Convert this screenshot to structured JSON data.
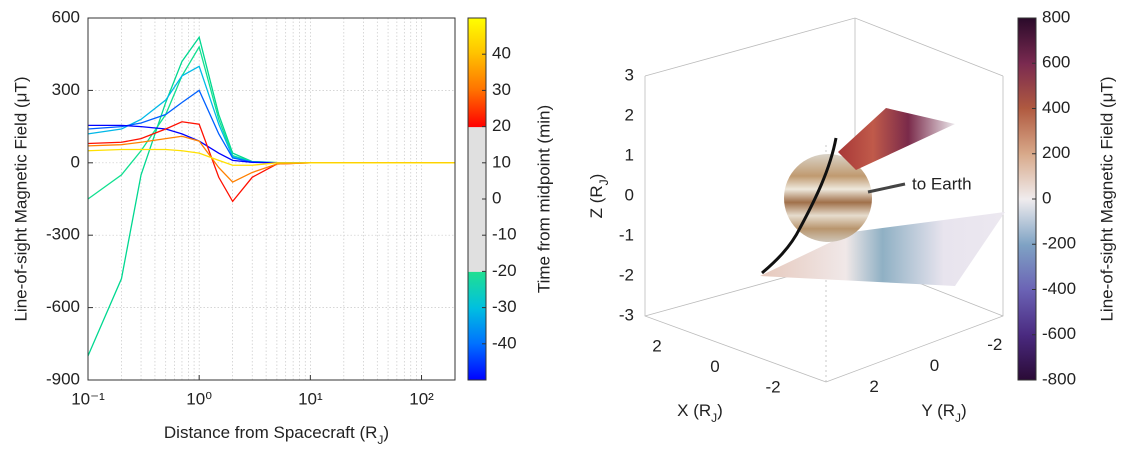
{
  "chart_data": [
    {
      "type": "line",
      "ylabel": "Line-of-sight  Magnetic  Field  (μT)",
      "xlabel": [
        "Distance  from  Spacecraft  (R",
        "J",
        ")"
      ],
      "xscale": "log",
      "x": [
        0.1,
        0.2,
        0.3,
        0.5,
        0.7,
        1,
        1.5,
        2,
        3,
        5,
        10,
        20,
        50,
        100,
        200
      ],
      "xlim": [
        0.1,
        200
      ],
      "xticks": [
        {
          "value": 0.1,
          "label": "10⁻¹"
        },
        {
          "value": 1,
          "label": "10⁰"
        },
        {
          "value": 10,
          "label": "10¹"
        },
        {
          "value": 100,
          "label": "10²"
        }
      ],
      "xminorticks": [
        0.2,
        0.3,
        0.4,
        0.5,
        0.6,
        0.7,
        0.8,
        0.9,
        2,
        3,
        4,
        5,
        6,
        7,
        8,
        9,
        20,
        30,
        40,
        50,
        60,
        70,
        80,
        90
      ],
      "ylim": [
        -900,
        600
      ],
      "yticks": [
        -900,
        -600,
        -300,
        0,
        300,
        600
      ],
      "grid": true,
      "series": [
        {
          "color": "#00d890",
          "values": [
            -800,
            -480,
            -50,
            250,
            420,
            520,
            200,
            40,
            5,
            1,
            0,
            0,
            0,
            0,
            0
          ]
        },
        {
          "color": "#10e090",
          "values": [
            -150,
            -50,
            50,
            200,
            360,
            480,
            180,
            30,
            5,
            0,
            0,
            0,
            0,
            0,
            0
          ]
        },
        {
          "color": "#00b8e8",
          "values": [
            120,
            140,
            180,
            260,
            360,
            400,
            160,
            25,
            4,
            0,
            0,
            0,
            0,
            0,
            0
          ]
        },
        {
          "color": "#0060ff",
          "values": [
            140,
            150,
            165,
            200,
            250,
            300,
            120,
            20,
            3,
            0,
            0,
            0,
            0,
            0,
            0
          ]
        },
        {
          "color": "#0000ff",
          "values": [
            155,
            155,
            150,
            140,
            120,
            90,
            40,
            10,
            2,
            0,
            0,
            0,
            0,
            0,
            0
          ]
        },
        {
          "color": "#ff1000",
          "values": [
            80,
            85,
            100,
            140,
            170,
            160,
            -60,
            -160,
            -60,
            -5,
            0,
            0,
            0,
            0,
            0
          ]
        },
        {
          "color": "#ff8000",
          "values": [
            70,
            75,
            85,
            100,
            110,
            90,
            -20,
            -80,
            -40,
            -5,
            0,
            0,
            0,
            0,
            0
          ]
        },
        {
          "color": "#ffe000",
          "values": [
            50,
            55,
            55,
            55,
            50,
            40,
            10,
            -10,
            -10,
            0,
            0,
            0,
            0,
            0,
            0
          ]
        }
      ],
      "colorbar": {
        "label": "Time  from  midpoint  (min)",
        "lim": [
          -50,
          50
        ],
        "ticks": [
          -40,
          -30,
          -20,
          -10,
          0,
          10,
          20,
          30,
          40
        ],
        "segments": [
          {
            "from": -50,
            "to": -40,
            "colors": [
              "#0000ff",
              "#0070ff"
            ]
          },
          {
            "from": -40,
            "to": -30,
            "colors": [
              "#0070ff",
              "#00c0e0"
            ]
          },
          {
            "from": -30,
            "to": -20,
            "colors": [
              "#00c0e0",
              "#20e090"
            ]
          },
          {
            "from": -20,
            "to": 20,
            "colors": [
              "#e0e0e0",
              "#e0e0e0"
            ]
          },
          {
            "from": 20,
            "to": 30,
            "colors": [
              "#ff0000",
              "#ff7000"
            ]
          },
          {
            "from": 30,
            "to": 40,
            "colors": [
              "#ff7000",
              "#ffc000"
            ]
          },
          {
            "from": 40,
            "to": 50,
            "colors": [
              "#ffc000",
              "#ffff00"
            ]
          }
        ]
      }
    },
    {
      "type": "surface3d",
      "annotation": "to Earth",
      "xlabel": [
        "X  (R",
        "J",
        ")"
      ],
      "ylabel": [
        "Y  (R",
        "J",
        ")"
      ],
      "zlabel": [
        "Z  (R",
        "J",
        ")"
      ],
      "xlim": [
        3,
        -3
      ],
      "ylim": [
        3,
        -3
      ],
      "zlim": [
        -3,
        3
      ],
      "xticks": [
        2,
        0,
        -2
      ],
      "yticks": [
        2,
        0,
        -2
      ],
      "zticks": [
        3,
        2,
        1,
        0,
        -1,
        -2,
        -3
      ],
      "colorbar": {
        "label": "Line-of-sight  Magnetic  Field  (μT)",
        "lim": [
          -800,
          800
        ],
        "ticks": [
          -800,
          -600,
          -400,
          -200,
          0,
          200,
          400,
          600,
          800
        ],
        "segments": [
          {
            "from": -800,
            "to": -600,
            "colors": [
              "#2a0a35",
              "#4a2a80"
            ]
          },
          {
            "from": -600,
            "to": -400,
            "colors": [
              "#4a2a80",
              "#6b63b5"
            ]
          },
          {
            "from": -400,
            "to": -200,
            "colors": [
              "#6b63b5",
              "#7fa3c4"
            ]
          },
          {
            "from": -200,
            "to": 0,
            "colors": [
              "#7fa3c4",
              "#f0ecee"
            ]
          },
          {
            "from": 0,
            "to": 200,
            "colors": [
              "#f0ecee",
              "#d8a98a"
            ]
          },
          {
            "from": 200,
            "to": 400,
            "colors": [
              "#d8a98a",
              "#b05a40"
            ]
          },
          {
            "from": 400,
            "to": 600,
            "colors": [
              "#b05a40",
              "#7a2a50"
            ]
          },
          {
            "from": 600,
            "to": 800,
            "colors": [
              "#7a2a50",
              "#2a0a2a"
            ]
          }
        ]
      }
    }
  ]
}
